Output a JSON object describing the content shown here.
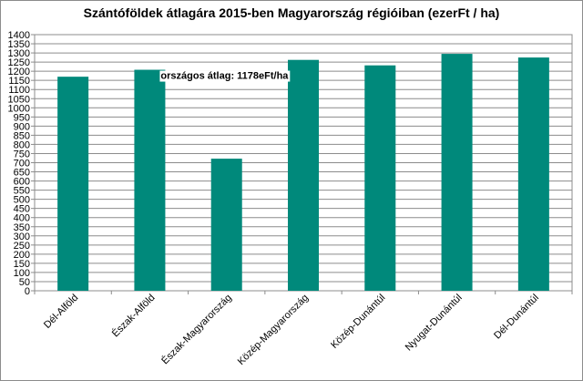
{
  "chart_data": {
    "type": "bar",
    "title": "Szántóföldek átlagára 2015-ben Magyarország régióiban (ezerFt / ha)",
    "categories": [
      "Dél-Alföld",
      "Észak-Alföld",
      "Észak-Magyarország",
      "Közép-Magyarország",
      "Közép-Dunántúl",
      "Nyugat-Dunántúl",
      "Dél-Dunántúl"
    ],
    "values": [
      1170,
      1208,
      722,
      1262,
      1232,
      1295,
      1275
    ],
    "ylim": [
      0,
      1400
    ],
    "ytick_step": 50,
    "grid": true,
    "bar_color": "#00897b",
    "annotation": "országos átlag: 1178eFt/ha",
    "xlabel": "",
    "ylabel": ""
  }
}
